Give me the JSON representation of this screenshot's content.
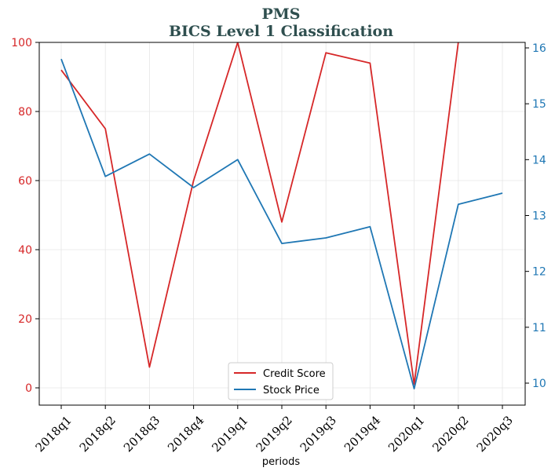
{
  "chart_data": {
    "type": "line",
    "title_line1": "PMS",
    "title_line2": "BICS Level 1 Classification",
    "xlabel": "periods",
    "categories": [
      "2018q1",
      "2018q2",
      "2018q3",
      "2018q4",
      "2019q1",
      "2019q2",
      "2019q3",
      "2019q4",
      "2020q1",
      "2020q2",
      "2020q3"
    ],
    "left_axis": {
      "ylim": [
        -5,
        100
      ],
      "ticks": [
        0,
        20,
        40,
        60,
        80,
        100
      ],
      "color": "#d62728"
    },
    "right_axis": {
      "ylim": [
        9.6,
        16.1
      ],
      "ticks": [
        10,
        11,
        12,
        13,
        14,
        15,
        16
      ],
      "color": "#1f77b4"
    },
    "series": [
      {
        "name": "Credit Score",
        "axis": "left",
        "color": "#d62728",
        "values": [
          92,
          75,
          6,
          60,
          100,
          48,
          97,
          94,
          1,
          100,
          null
        ]
      },
      {
        "name": "Stock Price",
        "axis": "right",
        "color": "#1f77b4",
        "values": [
          15.8,
          13.7,
          14.1,
          13.5,
          14.0,
          12.5,
          12.6,
          12.8,
          9.9,
          13.2,
          13.4
        ]
      }
    ],
    "legend_position": "lower-center",
    "grid": true
  }
}
